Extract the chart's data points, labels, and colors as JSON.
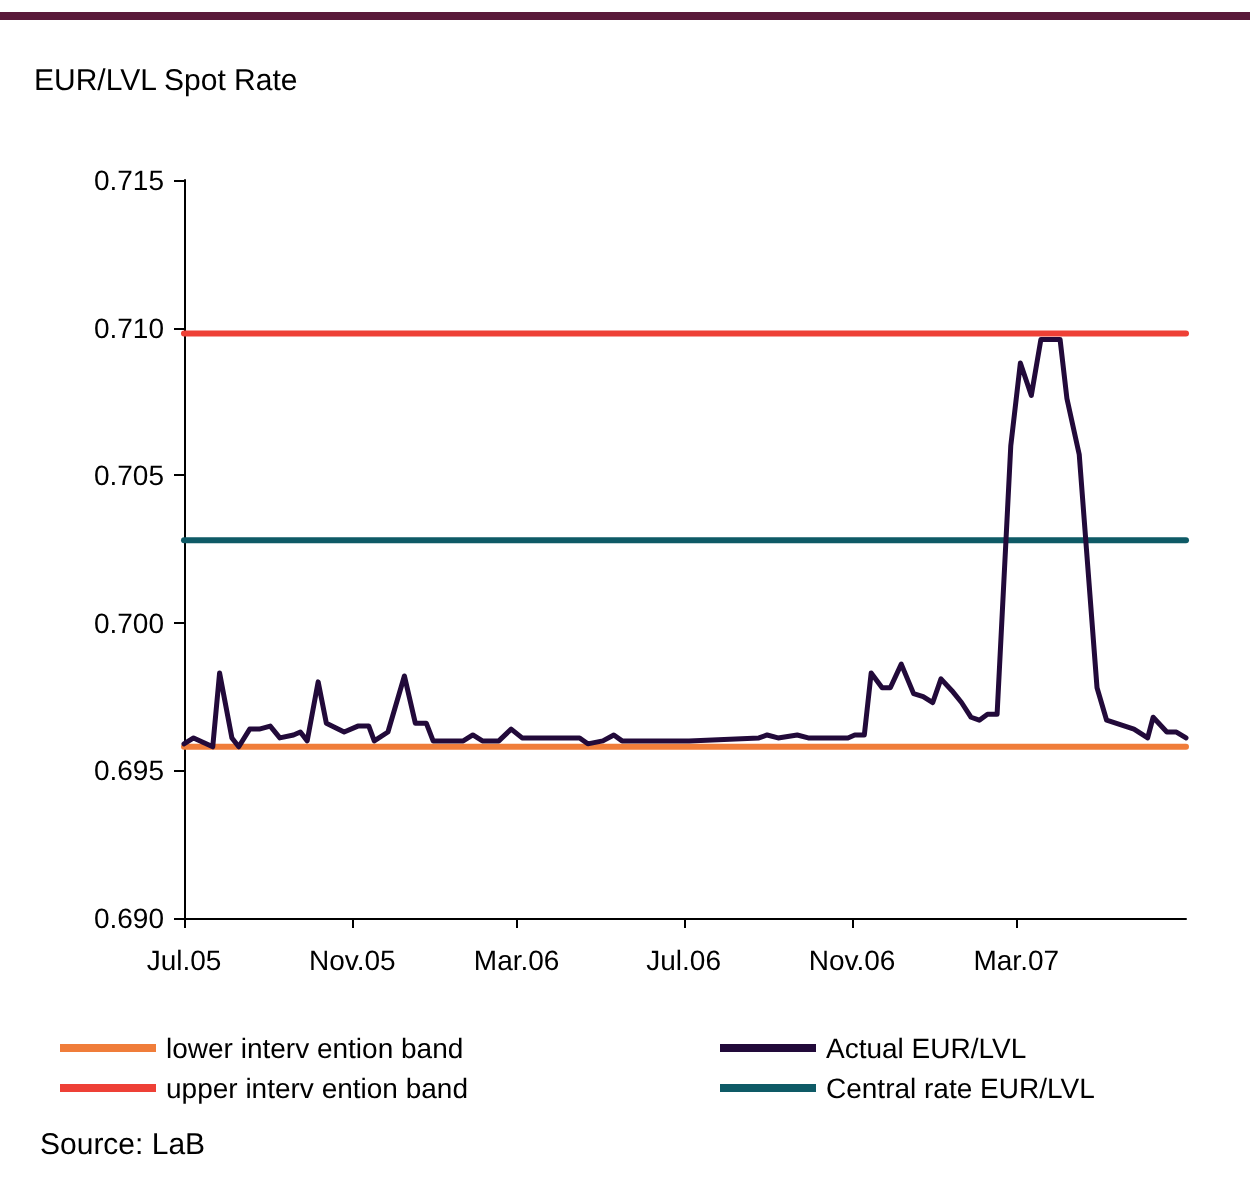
{
  "chart_data": {
    "type": "line",
    "title": "EUR/LVL Spot Rate",
    "x": [
      "2005-07-01",
      "2005-07-08",
      "2005-07-22",
      "2005-07-27",
      "2005-08-05",
      "2005-08-10",
      "2005-08-18",
      "2005-08-25",
      "2005-09-02",
      "2005-09-09",
      "2005-09-19",
      "2005-09-24",
      "2005-09-29",
      "2005-10-07",
      "2005-10-13",
      "2005-10-26",
      "2005-11-05",
      "2005-11-13",
      "2005-11-17",
      "2005-11-27",
      "2005-12-09",
      "2005-12-17",
      "2005-12-25",
      "2005-12-30",
      "2006-01-21",
      "2006-01-28",
      "2006-02-04",
      "2006-02-16",
      "2006-02-25",
      "2006-03-05",
      "2006-04-16",
      "2006-04-22",
      "2006-05-03",
      "2006-05-11",
      "2006-05-17",
      "2006-07-05",
      "2006-08-25",
      "2006-08-31",
      "2006-09-08",
      "2006-09-22",
      "2006-09-30",
      "2006-10-29",
      "2006-11-03",
      "2006-11-10",
      "2006-11-15",
      "2006-11-23",
      "2006-11-29",
      "2006-12-07",
      "2006-12-16",
      "2006-12-23",
      "2006-12-30",
      "2007-01-05",
      "2007-01-13",
      "2007-01-20",
      "2007-01-27",
      "2007-02-02",
      "2007-02-08",
      "2007-02-15",
      "2007-02-25",
      "2007-03-04",
      "2007-03-12",
      "2007-03-19",
      "2007-04-02",
      "2007-04-07",
      "2007-04-16",
      "2007-04-29",
      "2007-05-06",
      "2007-05-26",
      "2007-06-05",
      "2007-06-09",
      "2007-06-19",
      "2007-06-26",
      "2007-07-03"
    ],
    "series": [
      {
        "name": "lower interv ention band",
        "color": "#f07d3a",
        "x": [
          "2005-07-01",
          "2007-07-03"
        ],
        "values": [
          0.6958,
          0.6958
        ]
      },
      {
        "name": "Actual EUR/LVL",
        "color": "#220a3a",
        "values": [
          0.6959,
          0.6961,
          0.6958,
          0.6983,
          0.6961,
          0.6958,
          0.6964,
          0.6964,
          0.6965,
          0.6961,
          0.6962,
          0.6963,
          0.696,
          0.698,
          0.6966,
          0.6963,
          0.6965,
          0.6965,
          0.696,
          0.6963,
          0.6982,
          0.6966,
          0.6966,
          0.696,
          0.696,
          0.6962,
          0.696,
          0.696,
          0.6964,
          0.6961,
          0.6961,
          0.6959,
          0.696,
          0.6962,
          0.696,
          0.696,
          0.6961,
          0.6962,
          0.6961,
          0.6962,
          0.6961,
          0.6961,
          0.6962,
          0.6962,
          0.6983,
          0.6978,
          0.6978,
          0.6986,
          0.6976,
          0.6975,
          0.6973,
          0.6981,
          0.6977,
          0.6973,
          0.6968,
          0.6967,
          0.6969,
          0.6969,
          0.706,
          0.7088,
          0.7077,
          0.7096,
          0.7096,
          0.7076,
          0.7057,
          0.6978,
          0.6967,
          0.6964,
          0.6961,
          0.6968,
          0.6963,
          0.6963,
          0.6961
        ]
      },
      {
        "name": "upper interv ention band",
        "color": "#ee4036",
        "x": [
          "2005-07-01",
          "2007-07-03"
        ],
        "values": [
          0.7098,
          0.7098
        ]
      },
      {
        "name": "Central rate EUR/LVL",
        "color": "#0e5a66",
        "x": [
          "2005-07-01",
          "2007-07-03"
        ],
        "values": [
          0.7028,
          0.7028
        ]
      }
    ],
    "xlim": [
      "2005-07-01",
      "2007-07-03"
    ],
    "xticks": [
      {
        "value": "2005-07-01",
        "label": "Jul.05"
      },
      {
        "value": "2005-11-01",
        "label": "Nov.05"
      },
      {
        "value": "2006-03-01",
        "label": "Mar.06"
      },
      {
        "value": "2006-07-01",
        "label": "Jul.06"
      },
      {
        "value": "2006-11-01",
        "label": "Nov.06"
      },
      {
        "value": "2007-03-01",
        "label": "Mar.07"
      }
    ],
    "ylim": [
      0.69,
      0.715
    ],
    "yticks": [
      {
        "value": 0.69,
        "label": "0.690"
      },
      {
        "value": 0.695,
        "label": "0.695"
      },
      {
        "value": 0.7,
        "label": "0.700"
      },
      {
        "value": 0.705,
        "label": "0.705"
      },
      {
        "value": 0.71,
        "label": "0.710"
      },
      {
        "value": 0.715,
        "label": "0.715"
      }
    ],
    "grid": false,
    "legend": "bottom",
    "marker": "none",
    "line_style": "solid",
    "annotations": [
      "Source: LaB"
    ]
  }
}
